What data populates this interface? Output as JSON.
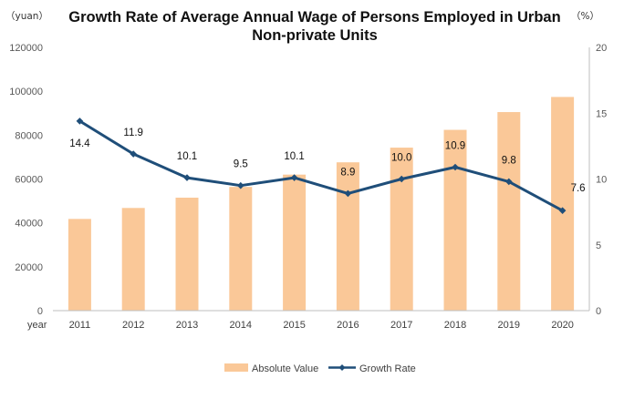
{
  "chart_data": {
    "type": "bar+line",
    "title_line1": "Growth Rate of Average Annual Wage of Persons Employed in Urban",
    "title_line2": "Non-private Units",
    "y_left_unit": "（yuan）",
    "y_right_unit": "（%）",
    "x_axis_label": "year",
    "categories": [
      "2011",
      "2012",
      "2013",
      "2014",
      "2015",
      "2016",
      "2017",
      "2018",
      "2019",
      "2020"
    ],
    "series": [
      {
        "name": "Absolute Value",
        "type": "bar",
        "axis": "left",
        "values": [
          41800,
          46800,
          51500,
          56400,
          62000,
          67600,
          74300,
          82400,
          90500,
          97400
        ]
      },
      {
        "name": "Growth Rate",
        "type": "line",
        "axis": "right",
        "values": [
          14.4,
          11.9,
          10.1,
          9.5,
          10.1,
          8.9,
          10.0,
          10.9,
          9.8,
          7.6
        ]
      }
    ],
    "data_labels": [
      "14.4",
      "11.9",
      "10.1",
      "9.5",
      "10.1",
      "8.9",
      "10.0",
      "10.9",
      "9.8",
      "7.6"
    ],
    "y_left": {
      "min": 0,
      "max": 120000,
      "step": 20000,
      "ticks": [
        "0",
        "20000",
        "40000",
        "60000",
        "80000",
        "100000",
        "120000"
      ]
    },
    "y_right": {
      "min": 0,
      "max": 20,
      "step": 5,
      "ticks": [
        "0",
        "5",
        "10",
        "15",
        "20"
      ]
    },
    "grid": false,
    "legend_position": "bottom-center",
    "colors": {
      "bar": "#FAC898",
      "line": "#1F4E79",
      "axis": "#BFBFBF"
    }
  }
}
